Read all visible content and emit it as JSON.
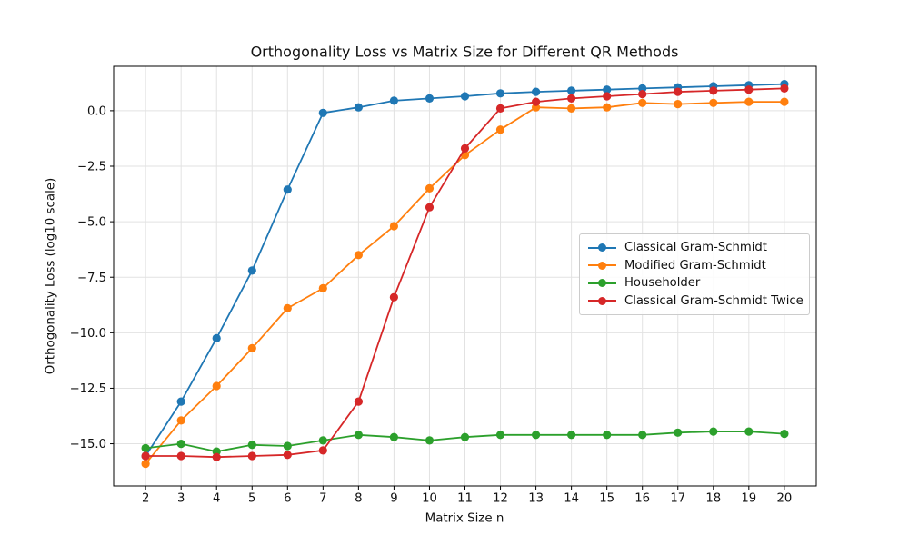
{
  "chart_data": {
    "type": "line",
    "title": "Orthogonality Loss vs Matrix Size for Different QR Methods",
    "xlabel": "Matrix Size n",
    "ylabel": "Orthogonality Loss (log10 scale)",
    "x": [
      2,
      3,
      4,
      5,
      6,
      7,
      8,
      9,
      10,
      11,
      12,
      13,
      14,
      15,
      16,
      17,
      18,
      19,
      20
    ],
    "series": [
      {
        "name": "Classical Gram-Schmidt",
        "color": "#1f77b4",
        "values": [
          -15.55,
          -13.1,
          -10.25,
          -7.2,
          -3.55,
          -0.1,
          0.15,
          0.45,
          0.55,
          0.65,
          0.78,
          0.85,
          0.9,
          0.95,
          1.0,
          1.05,
          1.1,
          1.15,
          1.2
        ]
      },
      {
        "name": "Modified Gram-Schmidt",
        "color": "#ff7f0e",
        "values": [
          -15.9,
          -13.95,
          -12.4,
          -10.7,
          -8.9,
          -8.0,
          -6.5,
          -5.2,
          -3.5,
          -2.0,
          -0.85,
          0.15,
          0.1,
          0.15,
          0.35,
          0.3,
          0.35,
          0.4,
          0.4
        ]
      },
      {
        "name": "Householder",
        "color": "#2ca02c",
        "values": [
          -15.2,
          -15.0,
          -15.35,
          -15.05,
          -15.1,
          -14.85,
          -14.6,
          -14.7,
          -14.85,
          -14.7,
          -14.6,
          -14.6,
          -14.6,
          -14.6,
          -14.6,
          -14.5,
          -14.45,
          -14.45,
          -14.55
        ]
      },
      {
        "name": "Classical Gram-Schmidt Twice",
        "color": "#d62728",
        "values": [
          -15.55,
          -15.55,
          -15.6,
          -15.55,
          -15.5,
          -15.3,
          -13.1,
          -8.4,
          -4.35,
          -1.7,
          0.1,
          0.4,
          0.55,
          0.65,
          0.75,
          0.85,
          0.9,
          0.95,
          1.0
        ]
      }
    ],
    "xlim": [
      1.1,
      20.9
    ],
    "ylim": [
      -16.9,
      2.0
    ],
    "xticks": [
      2,
      3,
      4,
      5,
      6,
      7,
      8,
      9,
      10,
      11,
      12,
      13,
      14,
      15,
      16,
      17,
      18,
      19,
      20
    ],
    "xtick_labels": [
      "2",
      "3",
      "4",
      "5",
      "6",
      "7",
      "8",
      "9",
      "10",
      "11",
      "12",
      "13",
      "14",
      "15",
      "16",
      "17",
      "18",
      "19",
      "20"
    ],
    "yticks": [
      0,
      -2.5,
      -5,
      -7.5,
      -10,
      -12.5,
      -15
    ],
    "ytick_labels": [
      "0.0",
      "−2.5",
      "−5.0",
      "−7.5",
      "−10.0",
      "−12.5",
      "−15.0"
    ],
    "grid": true,
    "legend_position": "center-right",
    "colors": {
      "grid": "#e2e2e2",
      "spine": "#000000",
      "text": "#111111",
      "legend_border": "#cccccc"
    }
  }
}
